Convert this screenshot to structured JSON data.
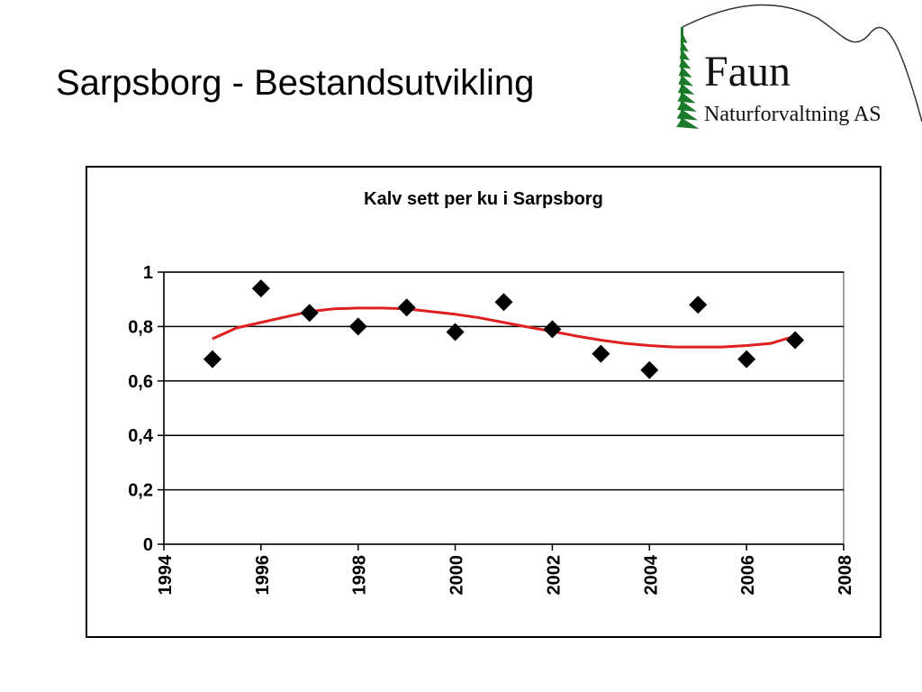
{
  "slide": {
    "title": "Sarpsborg - Bestandsutvikling"
  },
  "logo": {
    "main": "Faun",
    "sub": "Naturforvaltning AS"
  },
  "colors": {
    "trend": "#e02020",
    "marker": "#000000",
    "logo_tree": "#1a7a2a"
  },
  "chart_data": {
    "type": "scatter",
    "title": "Kalv sett per ku i Sarpsborg",
    "xlabel": "",
    "ylabel": "",
    "xlim": [
      1994,
      2008
    ],
    "ylim": [
      0,
      1
    ],
    "x_ticks": [
      "1994",
      "1996",
      "1998",
      "2000",
      "2002",
      "2004",
      "2006",
      "2008"
    ],
    "y_ticks": [
      "0",
      "0,2",
      "0,4",
      "0,6",
      "0,8",
      "1"
    ],
    "grid": "horizontal",
    "series": [
      {
        "kind": "points",
        "marker": "diamond",
        "x": [
          1995,
          1996,
          1997,
          1998,
          1999,
          2000,
          2001,
          2002,
          2003,
          2004,
          2005,
          2006,
          2007
        ],
        "y": [
          0.68,
          0.94,
          0.85,
          0.8,
          0.87,
          0.78,
          0.89,
          0.79,
          0.7,
          0.64,
          0.88,
          0.68,
          0.75
        ]
      },
      {
        "kind": "trend",
        "x": [
          1995,
          1995.5,
          1996,
          1996.5,
          1997,
          1997.5,
          1998,
          1998.5,
          1999,
          1999.5,
          2000,
          2000.5,
          2001,
          2001.5,
          2002,
          2002.5,
          2003,
          2003.5,
          2004,
          2004.5,
          2005,
          2005.5,
          2006,
          2006.5,
          2007
        ],
        "y": [
          0.755,
          0.795,
          0.815,
          0.835,
          0.855,
          0.865,
          0.868,
          0.868,
          0.865,
          0.855,
          0.845,
          0.832,
          0.815,
          0.798,
          0.782,
          0.765,
          0.75,
          0.738,
          0.73,
          0.725,
          0.725,
          0.725,
          0.73,
          0.738,
          0.765
        ]
      }
    ]
  }
}
